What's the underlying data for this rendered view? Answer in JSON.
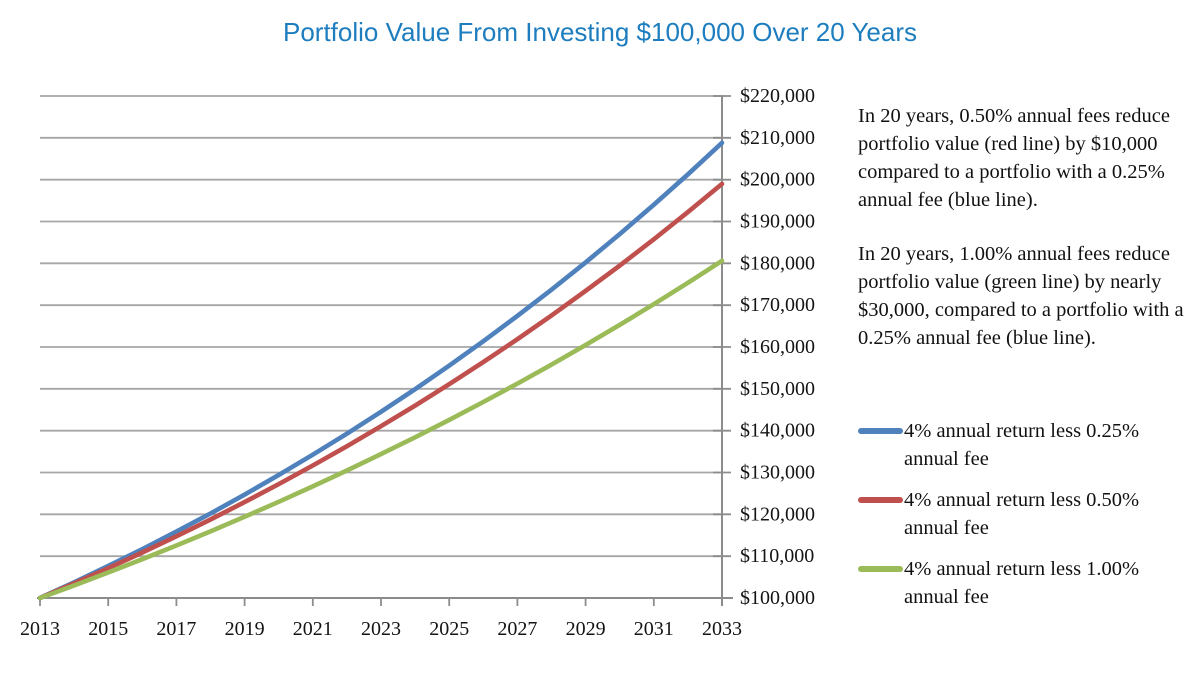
{
  "title": "Portfolio Value From Investing $100,000 Over 20 Years",
  "colors": {
    "title": "#1d7dbf",
    "grid": "#a6a6a6",
    "axis": "#8c8c8c",
    "text": "#111111"
  },
  "chart_data": {
    "type": "line",
    "title": "Portfolio Value From Investing $100,000 Over 20 Years",
    "x": [
      2013,
      2014,
      2015,
      2016,
      2017,
      2018,
      2019,
      2020,
      2021,
      2022,
      2023,
      2024,
      2025,
      2026,
      2027,
      2028,
      2029,
      2030,
      2031,
      2032,
      2033
    ],
    "x_tick_labels": [
      "2013",
      "2015",
      "2017",
      "2019",
      "2021",
      "2023",
      "2025",
      "2027",
      "2029",
      "2031",
      "2033"
    ],
    "y_tick_labels": [
      "$100,000",
      "$110,000",
      "$120,000",
      "$130,000",
      "$140,000",
      "$150,000",
      "$160,000",
      "$170,000",
      "$180,000",
      "$190,000",
      "$200,000",
      "$210,000",
      "$220,000"
    ],
    "ylim": [
      100000,
      220000
    ],
    "xlim": [
      2013,
      2033
    ],
    "y_tick_step": 10000,
    "grid": "horizontal",
    "legend_position": "right",
    "y_axis_side": "right",
    "series": [
      {
        "name": "4% annual return less 0.25% annual fee",
        "color": "#4F81BD",
        "values": [
          100000,
          103750,
          107641,
          111677,
          115865,
          120210,
          124718,
          129395,
          134247,
          139281,
          144504,
          149923,
          155545,
          161378,
          167430,
          173709,
          180223,
          186981,
          193993,
          201268,
          208815
        ]
      },
      {
        "name": "4% annual return less 0.50% annual fee",
        "color": "#C0504D",
        "values": [
          100000,
          103500,
          107123,
          110872,
          114752,
          118769,
          122926,
          127228,
          131681,
          136290,
          141060,
          145997,
          151107,
          156396,
          161869,
          167535,
          173399,
          179468,
          185749,
          192250,
          198979
        ]
      },
      {
        "name": "4% annual return less 1.00% annual fee",
        "color": "#9BBB59",
        "values": [
          100000,
          103000,
          106090,
          109273,
          112551,
          115927,
          119405,
          122987,
          126677,
          130477,
          134392,
          138423,
          142576,
          146853,
          151259,
          155797,
          160471,
          165285,
          170243,
          175351,
          180611
        ]
      }
    ]
  },
  "annotations": [
    {
      "text": "In 20 years, 0.50% annual fees reduce portfolio value (red line) by $10,000 compared to a portfolio with a 0.25% annual fee (blue line)."
    },
    {
      "text": "In 20 years, 1.00% annual fees reduce portfolio value (green line) by nearly $30,000, compared to a portfolio with a 0.25% annual fee (blue line)."
    }
  ]
}
